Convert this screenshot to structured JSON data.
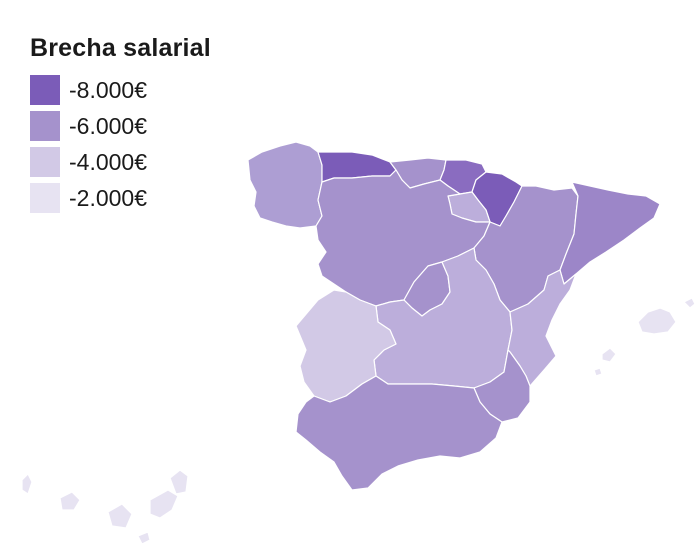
{
  "legend": {
    "title": "Brecha salarial",
    "items": [
      {
        "label": "-8.000€",
        "color": "#7b5cb8"
      },
      {
        "label": "-6.000€",
        "color": "#a592cc"
      },
      {
        "label": "-4.000€",
        "color": "#d2c9e6"
      },
      {
        "label": "-2.000€",
        "color": "#e7e3f2"
      }
    ]
  },
  "regions": [
    {
      "name": "Galicia",
      "color": "#ad9ed3"
    },
    {
      "name": "Asturias",
      "color": "#7b5cb8"
    },
    {
      "name": "Cantabria",
      "color": "#a592cc"
    },
    {
      "name": "País Vasco",
      "color": "#8a6cc0"
    },
    {
      "name": "Navarra",
      "color": "#7b5cb8"
    },
    {
      "name": "La Rioja",
      "color": "#bcaedb"
    },
    {
      "name": "Castilla y León",
      "color": "#a592cc"
    },
    {
      "name": "Aragón",
      "color": "#a592cc"
    },
    {
      "name": "Cataluña",
      "color": "#9c86c8"
    },
    {
      "name": "Madrid",
      "color": "#a592cc"
    },
    {
      "name": "Castilla-La Mancha",
      "color": "#bcaedb"
    },
    {
      "name": "Extremadura",
      "color": "#d2c9e6"
    },
    {
      "name": "Comunidad Valenciana",
      "color": "#bcaedb"
    },
    {
      "name": "Murcia",
      "color": "#a592cc"
    },
    {
      "name": "Andalucía",
      "color": "#a592cc"
    },
    {
      "name": "Islas Baleares",
      "color": "#e7e3f2"
    },
    {
      "name": "Islas Canarias",
      "color": "#e7e3f2"
    }
  ]
}
